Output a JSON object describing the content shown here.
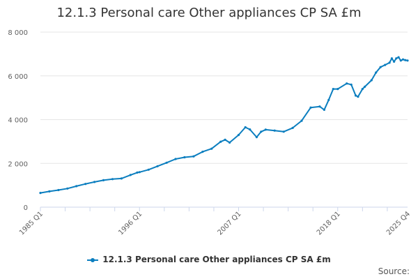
{
  "chart_data": {
    "type": "line",
    "title": "12.1.3 Personal care Other appliances CP SA £m",
    "xlabel": "",
    "ylabel": "",
    "ylim": [
      0,
      8000
    ],
    "yticks": [
      0,
      2000,
      4000,
      6000,
      8000
    ],
    "ytick_labels": [
      "0",
      "2 000",
      "4 000",
      "6 000",
      "8 000"
    ],
    "x_range": [
      "1985 Q1",
      "2025 Q4"
    ],
    "xtick_labels": [
      "1985 Q1",
      "1996 Q1",
      "2007 Q1",
      "2018 Q1",
      "2025 Q4"
    ],
    "legend_position": "bottom",
    "series": [
      {
        "name": "12.1.3 Personal care Other appliances CP SA £m",
        "color": "#0B7EBF",
        "x": [
          "1985 Q1",
          "1986 Q1",
          "1987 Q1",
          "1988 Q1",
          "1989 Q1",
          "1990 Q1",
          "1991 Q1",
          "1992 Q1",
          "1993 Q1",
          "1994 Q1",
          "1995 Q1",
          "1995 Q4",
          "1996 Q1",
          "1997 Q1",
          "1998 Q1",
          "1999 Q1",
          "2000 Q1",
          "2001 Q1",
          "2002 Q1",
          "2003 Q1",
          "2004 Q1",
          "2005 Q1",
          "2005 Q3",
          "2006 Q1",
          "2007 Q1",
          "2007 Q4",
          "2008 Q2",
          "2009 Q1",
          "2009 Q3",
          "2010 Q1",
          "2011 Q1",
          "2012 Q1",
          "2013 Q1",
          "2014 Q1",
          "2015 Q1",
          "2016 Q1",
          "2016 Q3",
          "2017 Q1",
          "2017 Q3",
          "2018 Q1",
          "2019 Q1",
          "2019 Q3",
          "2020 Q1",
          "2020 Q2",
          "2020 Q4",
          "2021 Q1",
          "2021 Q4",
          "2022 Q2",
          "2022 Q4",
          "2023 Q2",
          "2023 Q4",
          "2024 Q1",
          "2024 Q2",
          "2024 Q3",
          "2024 Q4",
          "2025 Q1",
          "2025 Q2",
          "2025 Q3",
          "2025 Q4"
        ],
        "values": [
          650,
          720,
          780,
          850,
          960,
          1060,
          1150,
          1230,
          1280,
          1310,
          1470,
          1580,
          1600,
          1710,
          1870,
          2030,
          2200,
          2280,
          2320,
          2530,
          2670,
          2990,
          3080,
          2950,
          3300,
          3650,
          3550,
          3200,
          3450,
          3540,
          3500,
          3450,
          3620,
          3950,
          4550,
          4600,
          4450,
          4900,
          5400,
          5400,
          5650,
          5600,
          5100,
          5050,
          5400,
          5500,
          5800,
          6150,
          6400,
          6500,
          6600,
          6800,
          6650,
          6800,
          6850,
          6700,
          6750,
          6720,
          6700
        ]
      }
    ]
  },
  "credits": "Source:"
}
